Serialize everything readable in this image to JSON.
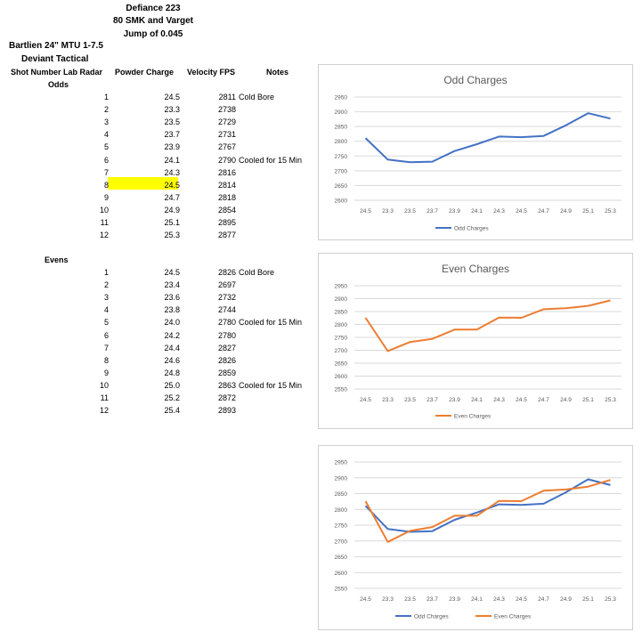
{
  "header": {
    "line1": "Defiance 223",
    "line2": "80 SMK and Varget",
    "line3": "Jump of 0.045",
    "rifle": "Bartlien 24\" MTU 1-7.5",
    "scope": "Deviant Tactical"
  },
  "columns": {
    "shot": "Shot Number Lab Radar",
    "powder": "Powder Charge",
    "velocity": "Velocity FPS",
    "notes": "Notes"
  },
  "odds": {
    "label": "Odds",
    "rows": [
      {
        "shot": "1",
        "charge": "24.5",
        "velocity": "2811",
        "note": "Cold Bore"
      },
      {
        "shot": "2",
        "charge": "23.3",
        "velocity": "2738",
        "note": ""
      },
      {
        "shot": "3",
        "charge": "23.5",
        "velocity": "2729",
        "note": ""
      },
      {
        "shot": "4",
        "charge": "23.7",
        "velocity": "2731",
        "note": ""
      },
      {
        "shot": "5",
        "charge": "23.9",
        "velocity": "2767",
        "note": ""
      },
      {
        "shot": "6",
        "charge": "24.1",
        "velocity": "2790",
        "note": "Cooled for 15 Min"
      },
      {
        "shot": "7",
        "charge": "24.3",
        "velocity": "2816",
        "note": ""
      },
      {
        "shot": "8",
        "charge": "24.5",
        "velocity": "2814",
        "note": ""
      },
      {
        "shot": "9",
        "charge": "24.7",
        "velocity": "2818",
        "note": ""
      },
      {
        "shot": "10",
        "charge": "24.9",
        "velocity": "2854",
        "note": ""
      },
      {
        "shot": "11",
        "charge": "25.1",
        "velocity": "2895",
        "note": ""
      },
      {
        "shot": "12",
        "charge": "25.3",
        "velocity": "2877",
        "note": ""
      }
    ]
  },
  "evens": {
    "label": "Evens",
    "rows": [
      {
        "shot": "1",
        "charge": "24.5",
        "velocity": "2826",
        "note": "Cold Bore"
      },
      {
        "shot": "2",
        "charge": "23.4",
        "velocity": "2697",
        "note": ""
      },
      {
        "shot": "3",
        "charge": "23.6",
        "velocity": "2732",
        "note": ""
      },
      {
        "shot": "4",
        "charge": "23.8",
        "velocity": "2744",
        "note": ""
      },
      {
        "shot": "5",
        "charge": "24.0",
        "velocity": "2780",
        "note": "Cooled for 15 Min"
      },
      {
        "shot": "6",
        "charge": "24.2",
        "velocity": "2780",
        "note": ""
      },
      {
        "shot": "7",
        "charge": "24.4",
        "velocity": "2827",
        "note": ""
      },
      {
        "shot": "8",
        "charge": "24.6",
        "velocity": "2826",
        "note": ""
      },
      {
        "shot": "9",
        "charge": "24.8",
        "velocity": "2859",
        "note": ""
      },
      {
        "shot": "10",
        "charge": "25.0",
        "velocity": "2863",
        "note": "Cooled for 15 Min"
      },
      {
        "shot": "11",
        "charge": "25.2",
        "velocity": "2872",
        "note": ""
      },
      {
        "shot": "12",
        "charge": "25.4",
        "velocity": "2893",
        "note": ""
      }
    ]
  },
  "highlight_color": "#ffff00",
  "colors": {
    "odd": "#4472c4",
    "even": "#ed7d31",
    "grid": "#d9d9d9",
    "text": "#595959"
  },
  "chart_data": [
    {
      "type": "line",
      "title": "Odd Charges",
      "categories": [
        "24.5",
        "23.3",
        "23.5",
        "23.7",
        "23.9",
        "24.1",
        "24.3",
        "24.5",
        "24.7",
        "24.9",
        "25.1",
        "25.3"
      ],
      "series": [
        {
          "name": "Odd Charges",
          "color": "#4472c4",
          "values": [
            2811,
            2738,
            2729,
            2731,
            2767,
            2790,
            2816,
            2814,
            2818,
            2854,
            2895,
            2877
          ]
        }
      ],
      "ylim": [
        2600,
        2950
      ],
      "yticks": [
        "2950",
        "2900",
        "2850",
        "2800",
        "2750",
        "2700",
        "2650",
        "2600"
      ],
      "grid": true,
      "legend": "bottom"
    },
    {
      "type": "line",
      "title": "Even Charges",
      "categories": [
        "24.5",
        "23.3",
        "23.5",
        "23.7",
        "23.9",
        "24.1",
        "24.3",
        "24.5",
        "24.7",
        "24.9",
        "25.1",
        "25.3"
      ],
      "series": [
        {
          "name": "Even Charges",
          "color": "#ed7d31",
          "values": [
            2826,
            2697,
            2732,
            2744,
            2780,
            2780,
            2827,
            2826,
            2859,
            2863,
            2872,
            2893
          ]
        }
      ],
      "ylim": [
        2550,
        2950
      ],
      "yticks": [
        "2950",
        "2900",
        "2850",
        "2800",
        "2750",
        "2700",
        "2650",
        "2600",
        "2550"
      ],
      "grid": true,
      "legend": "bottom"
    },
    {
      "type": "line",
      "title": "",
      "categories": [
        "24.5",
        "23.3",
        "23.5",
        "23.7",
        "23.9",
        "24.1",
        "24.3",
        "24.5",
        "24.7",
        "24.9",
        "25.1",
        "25.3"
      ],
      "series": [
        {
          "name": "Odd Charges",
          "color": "#4472c4",
          "values": [
            2811,
            2738,
            2729,
            2731,
            2767,
            2790,
            2816,
            2814,
            2818,
            2854,
            2895,
            2877
          ]
        },
        {
          "name": "Even Charges",
          "color": "#ed7d31",
          "values": [
            2826,
            2697,
            2732,
            2744,
            2780,
            2780,
            2827,
            2826,
            2859,
            2863,
            2872,
            2893
          ]
        }
      ],
      "ylim": [
        2550,
        2950
      ],
      "yticks": [
        "2950",
        "2900",
        "2850",
        "2800",
        "2750",
        "2700",
        "2650",
        "2600",
        "2550"
      ],
      "grid": true,
      "legend": "bottom"
    }
  ]
}
